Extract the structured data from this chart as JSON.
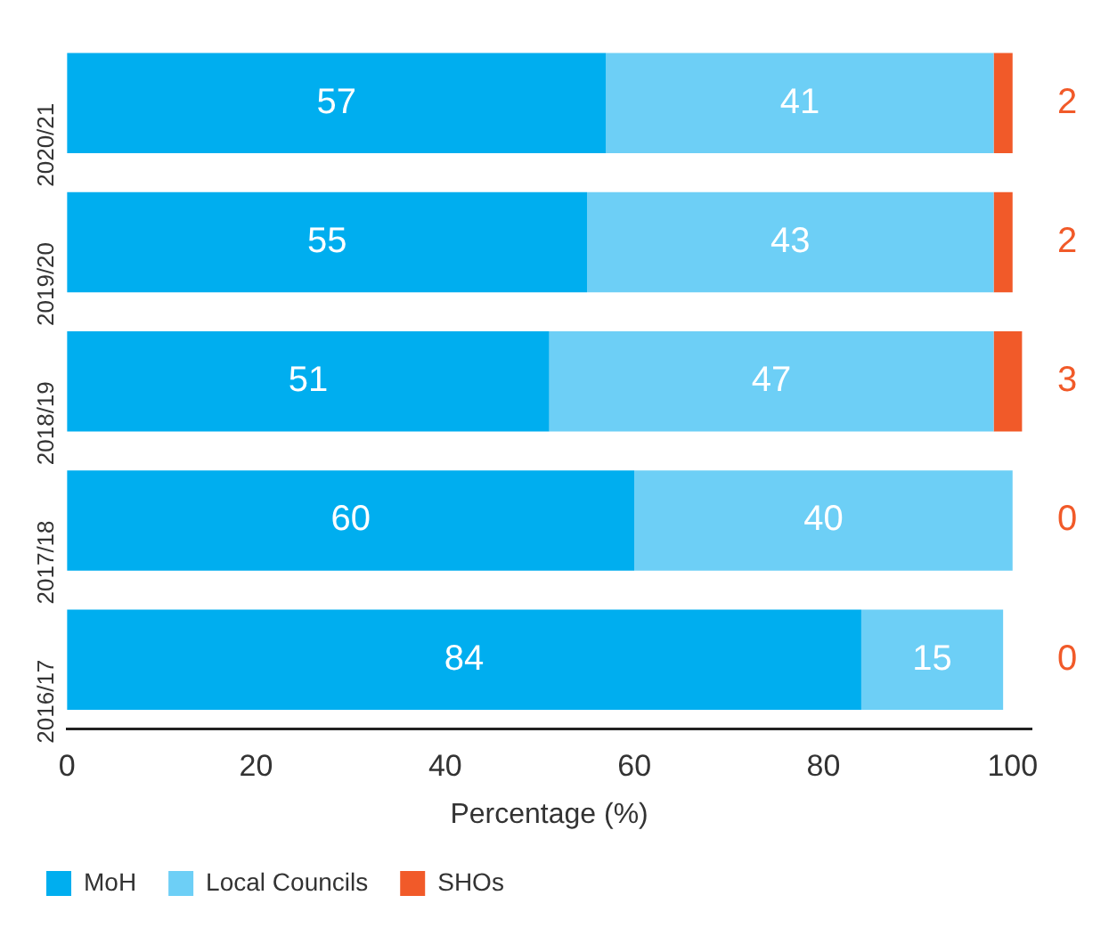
{
  "chart_data": {
    "type": "bar",
    "orientation": "horizontal",
    "stacked": true,
    "xlabel": "Percentage (%)",
    "categories": [
      "2020/21",
      "2019/20",
      "2018/19",
      "2017/18",
      "2016/17"
    ],
    "series": [
      {
        "name": "MoH",
        "color": "#00aeef",
        "values": [
          57,
          55,
          51,
          60,
          84
        ]
      },
      {
        "name": "Local Councils",
        "color": "#6dcff6",
        "values": [
          41,
          43,
          47,
          40,
          15
        ]
      },
      {
        "name": "SHOs",
        "color": "#f15a29",
        "values": [
          2,
          2,
          3,
          0,
          0
        ]
      }
    ],
    "xlim": [
      0,
      102
    ],
    "xticks": [
      0,
      20,
      40,
      60,
      80,
      100
    ],
    "grid": false,
    "legend": "bottom left",
    "data_labels": true
  }
}
